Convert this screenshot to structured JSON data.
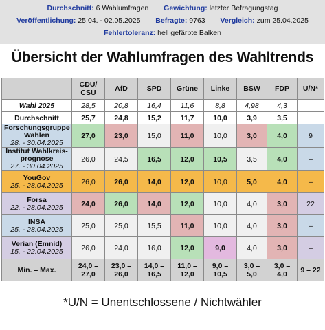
{
  "info": {
    "durchschnitt_label": "Durchschnitt:",
    "durchschnitt_value": "6 Wahlumfragen",
    "gewichtung_label": "Gewichtung:",
    "gewichtung_value": "letzter Befragungstag",
    "veroeff_label": "Veröffentlichung:",
    "veroeff_value": "25.04. - 02.05.2025",
    "befragte_label": "Befragte:",
    "befragte_value": "9763",
    "vergleich_label": "Vergleich:",
    "vergleich_value": "zum 25.04.2025",
    "fehler_label": "Fehlertoleranz:",
    "fehler_value": "hell gefärbte Balken"
  },
  "title": "Übersicht der Wahlumfragen des Wahltrends",
  "table": {
    "headers": [
      "CDU/\nCSU",
      "AfD",
      "SPD",
      "Grüne",
      "Linke",
      "BSW",
      "FDP",
      "U/N*"
    ],
    "wahl_label": "Wahl 2025",
    "wahl": [
      "28,5",
      "20,8",
      "16,4",
      "11,6",
      "8,8",
      "4,98",
      "4,3",
      ""
    ],
    "durch_label": "Durchschnitt",
    "durch": [
      "25,7",
      "24,8",
      "15,2",
      "11,7",
      "10,0",
      "3,9",
      "3,5",
      ""
    ],
    "rows": [
      {
        "name": "Forschungsgruppe Wahlen",
        "date": "28. - 30.04.2025",
        "values": [
          "27,0",
          "23,0",
          "15,0",
          "11,0",
          "10,0",
          "3,0",
          "4,0",
          "9"
        ]
      },
      {
        "name": "Institut Wahlkreis-prognose",
        "date": "27. - 30.04.2025",
        "values": [
          "26,0",
          "24,5",
          "16,5",
          "12,0",
          "10,5",
          "3,5",
          "4,0",
          "–"
        ]
      },
      {
        "name": "YouGov",
        "date": "25. - 28.04.2025",
        "values": [
          "26,0",
          "26,0",
          "14,0",
          "12,0",
          "10,0",
          "5,0",
          "4,0",
          "–"
        ]
      },
      {
        "name": "Forsa",
        "date": "22. - 28.04.2025",
        "values": [
          "24,0",
          "26,0",
          "14,0",
          "12,0",
          "10,0",
          "4,0",
          "3,0",
          "22"
        ]
      },
      {
        "name": "INSA",
        "date": "25. - 28.04.2025",
        "values": [
          "25,0",
          "25,0",
          "15,5",
          "11,0",
          "10,0",
          "4,0",
          "3,0",
          "–"
        ]
      },
      {
        "name": "Verian (Emnid)",
        "date": "15. - 22.04.2025",
        "values": [
          "26,0",
          "24,0",
          "16,0",
          "12,0",
          "9,0",
          "4,0",
          "3,0",
          "–"
        ]
      }
    ],
    "minmax_label": "Min. – Max.",
    "minmax": [
      "24,0 – 27,0",
      "23,0 – 26,0",
      "14,0 – 16,5",
      "11,0 – 12,0",
      "9,0 – 10,5",
      "3,0 – 5,0",
      "3,0 – 4,0",
      "9 – 22"
    ]
  },
  "note": "*U/N = Unentschlossene / Nichtwähler"
}
